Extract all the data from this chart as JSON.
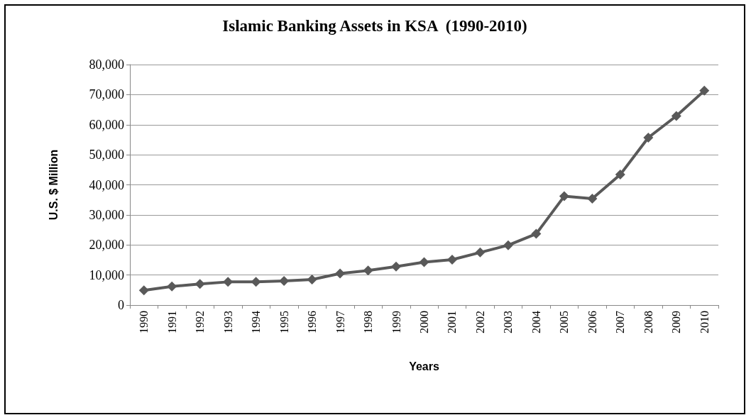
{
  "chart_data": {
    "type": "line",
    "title": "Islamic Banking Assets in KSA  (1990-2010)",
    "xlabel": "Years",
    "ylabel": "U.S. $ Million",
    "categories": [
      "1990",
      "1991",
      "1992",
      "1993",
      "1994",
      "1995",
      "1996",
      "1997",
      "1998",
      "1999",
      "2000",
      "2001",
      "2002",
      "2003",
      "2004",
      "2005",
      "2006",
      "2007",
      "2008",
      "2009",
      "2010"
    ],
    "series": [
      {
        "color": "#595959",
        "values": [
          4900,
          6200,
          7000,
          7700,
          7700,
          8000,
          8500,
          10500,
          11500,
          12800,
          14300,
          15100,
          17500,
          19900,
          23700,
          36200,
          35400,
          43400,
          55700,
          62900,
          71300
        ]
      }
    ],
    "ylim": [
      0,
      80000
    ],
    "yticks": [
      0,
      {
        "value": 10000,
        "label": "10,000"
      },
      {
        "value": 20000,
        "label": "20,000"
      },
      {
        "value": 30000,
        "label": "30,000"
      },
      {
        "value": 40000,
        "label": "40,000"
      },
      {
        "value": 50000,
        "label": "50,000"
      },
      {
        "value": 60000,
        "label": "60,000"
      },
      {
        "value": 70000,
        "label": "70,000"
      },
      {
        "value": 80000,
        "label": "80,000"
      }
    ],
    "grid": "y",
    "marker": "diamond",
    "line_style": "solid"
  }
}
